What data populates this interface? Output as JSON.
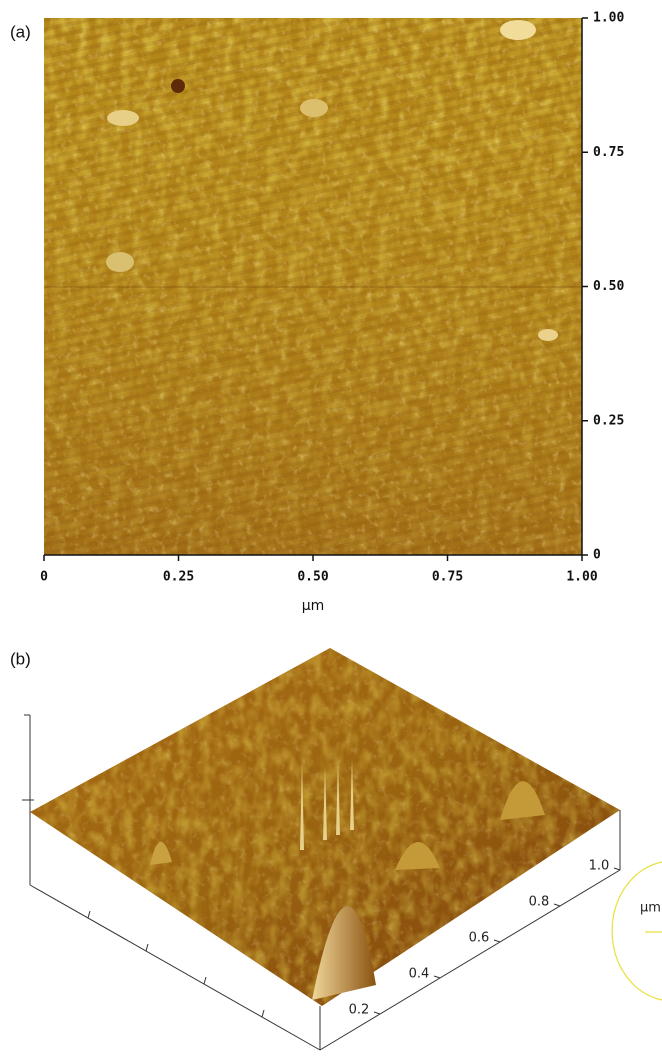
{
  "panel_a": {
    "label": "(a)",
    "x_ticks": [
      "0",
      "0.25",
      "0.50",
      "0.75",
      "1.00"
    ],
    "y_ticks": [
      "0",
      "0.25",
      "0.50",
      "0.75",
      "1.00"
    ],
    "x_unit": "μm"
  },
  "panel_b": {
    "label": "(b)",
    "axis_ticks": [
      "0.2",
      "0.4",
      "0.6",
      "0.8",
      "1.0"
    ],
    "unit": "μm"
  }
}
